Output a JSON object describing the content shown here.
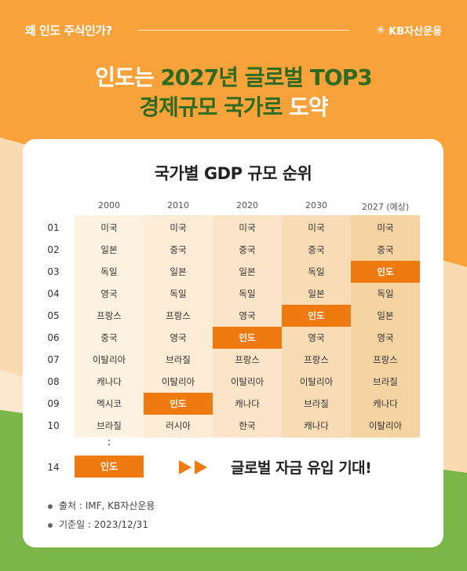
{
  "header": {
    "question": "왜 인도 주식인가?",
    "logo_text": "KB자산운용",
    "logo_icon": "kb-star-icon"
  },
  "headline": {
    "line1_part1": "인도는 ",
    "line1_part2": "2027년 글로벌 TOP3",
    "line2_part1": "경제규모 국가로",
    "line2_part2": " 도약"
  },
  "table": {
    "title": "국가별 GDP 규모 순위",
    "columns": [
      "2000",
      "2010",
      "2020",
      "2030",
      "2027 (예상)"
    ],
    "ranks": [
      "01",
      "02",
      "03",
      "04",
      "05",
      "06",
      "07",
      "08",
      "09",
      "10"
    ],
    "rows": [
      [
        "미국",
        "미국",
        "미국",
        "미국",
        "미국"
      ],
      [
        "일본",
        "중국",
        "중국",
        "중국",
        "중국"
      ],
      [
        "독일",
        "일본",
        "일본",
        "독일",
        "인도"
      ],
      [
        "영국",
        "독일",
        "독일",
        "일본",
        "독일"
      ],
      [
        "프랑스",
        "프랑스",
        "영국",
        "인도",
        "일본"
      ],
      [
        "중국",
        "영국",
        "인도",
        "영국",
        "영국"
      ],
      [
        "이탈리아",
        "브라질",
        "프랑스",
        "프랑스",
        "프랑스"
      ],
      [
        "캐나다",
        "이탈리아",
        "이탈리아",
        "이탈리아",
        "브라질"
      ],
      [
        "멕시코",
        "인도",
        "캐나다",
        "브라질",
        "캐나다"
      ],
      [
        "브라질",
        "러시아",
        "한국",
        "캐나다",
        "이탈리아"
      ]
    ],
    "highlight_value": "인도",
    "continuation": ":",
    "rank14_label": "14",
    "rank14_value": "인도",
    "highlight_color": "#ef7b10"
  },
  "cta": {
    "arrow_icon": "double-play-arrow-icon",
    "text": "글로벌 자금 유입 기대!"
  },
  "notes": {
    "source": "출처 : IMF, KB자산운용",
    "date": "기준일 : 2023/12/31"
  },
  "colors": {
    "orange": "#f7a23a",
    "green": "#2f6b1e",
    "peach": "#fce0c0",
    "lime": "#7ab648"
  }
}
